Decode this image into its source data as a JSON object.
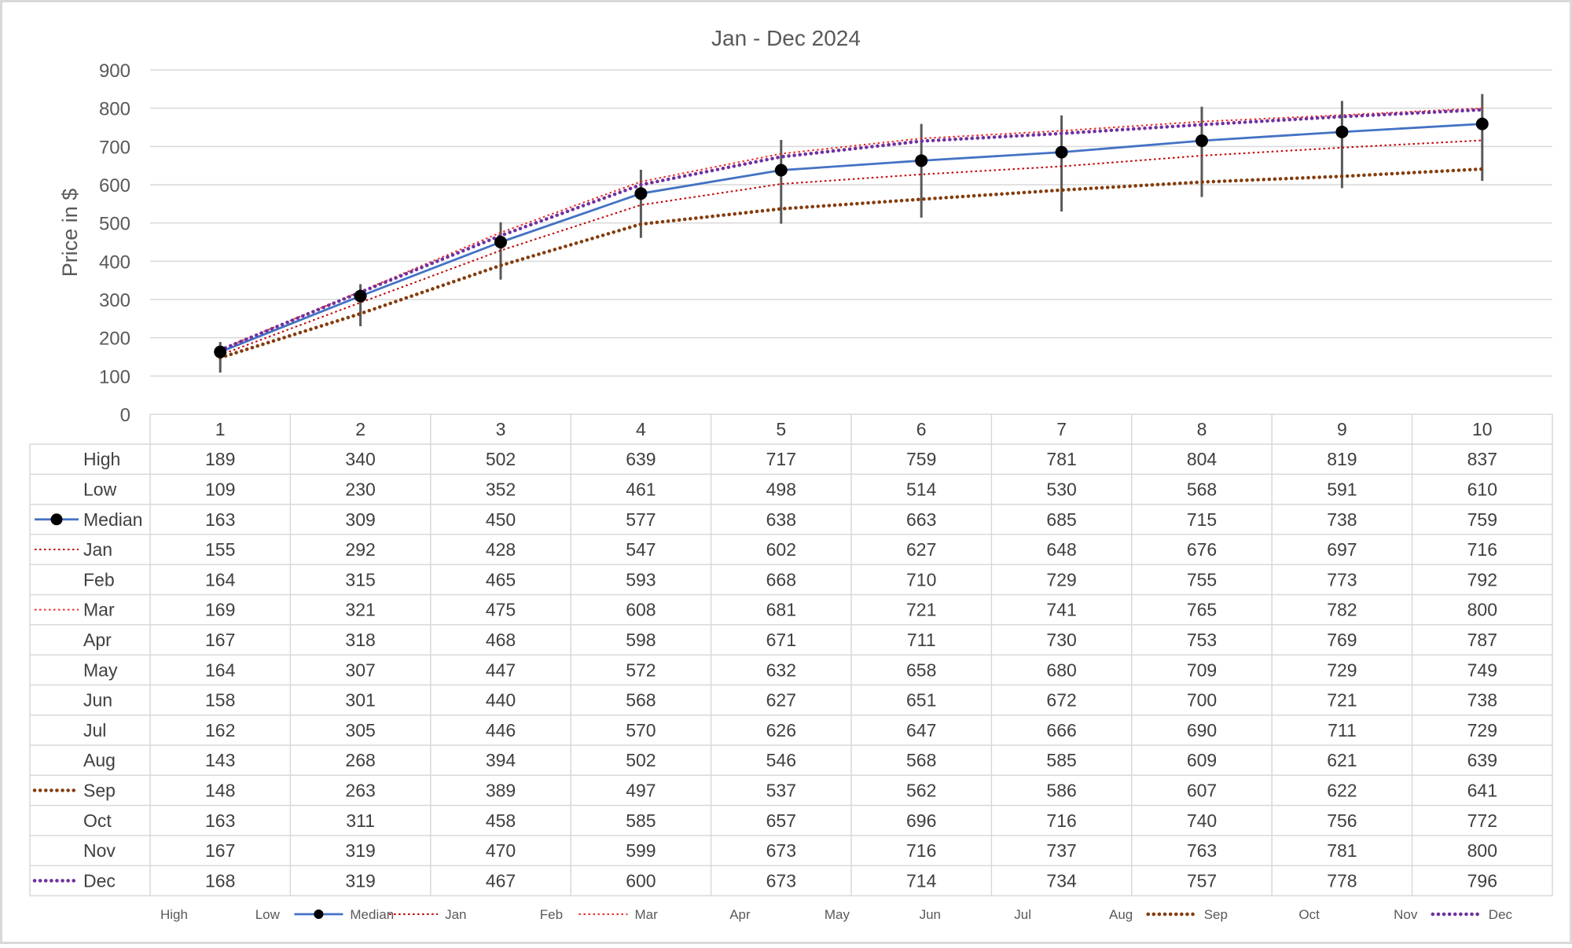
{
  "chart_data": {
    "type": "line",
    "title": "Jan - Dec 2024",
    "ylabel": "Price in $",
    "xlabel": "",
    "ylim": [
      0,
      900
    ],
    "yticks": [
      0,
      100,
      200,
      300,
      400,
      500,
      600,
      700,
      800,
      900
    ],
    "categories": [
      "1",
      "2",
      "3",
      "4",
      "5",
      "6",
      "7",
      "8",
      "9",
      "10"
    ],
    "grid": true,
    "legend_position": "bottom",
    "high_low_bars": true,
    "series": [
      {
        "name": "High",
        "values": [
          189,
          340,
          502,
          639,
          717,
          759,
          781,
          804,
          819,
          837
        ],
        "style": "none",
        "color": ""
      },
      {
        "name": "Low",
        "values": [
          109,
          230,
          352,
          461,
          498,
          514,
          530,
          568,
          591,
          610
        ],
        "style": "none",
        "color": ""
      },
      {
        "name": "Median",
        "values": [
          163,
          309,
          450,
          577,
          638,
          663,
          685,
          715,
          738,
          759
        ],
        "style": "solid-marker",
        "color": "#4472c4"
      },
      {
        "name": "Jan",
        "values": [
          155,
          292,
          428,
          547,
          602,
          627,
          648,
          676,
          697,
          716
        ],
        "style": "dotted-thin",
        "color": "#c00000"
      },
      {
        "name": "Feb",
        "values": [
          164,
          315,
          465,
          593,
          668,
          710,
          729,
          755,
          773,
          792
        ],
        "style": "none",
        "color": ""
      },
      {
        "name": "Mar",
        "values": [
          169,
          321,
          475,
          608,
          681,
          721,
          741,
          765,
          782,
          800
        ],
        "style": "dotted-thin",
        "color": "#e8302a"
      },
      {
        "name": "Apr",
        "values": [
          167,
          318,
          468,
          598,
          671,
          711,
          730,
          753,
          769,
          787
        ],
        "style": "none",
        "color": ""
      },
      {
        "name": "May",
        "values": [
          164,
          307,
          447,
          572,
          632,
          658,
          680,
          709,
          729,
          749
        ],
        "style": "none",
        "color": ""
      },
      {
        "name": "Jun",
        "values": [
          158,
          301,
          440,
          568,
          627,
          651,
          672,
          700,
          721,
          738
        ],
        "style": "none",
        "color": ""
      },
      {
        "name": "Jul",
        "values": [
          162,
          305,
          446,
          570,
          626,
          647,
          666,
          690,
          711,
          729
        ],
        "style": "none",
        "color": ""
      },
      {
        "name": "Aug",
        "values": [
          143,
          268,
          394,
          502,
          546,
          568,
          585,
          609,
          621,
          639
        ],
        "style": "none",
        "color": ""
      },
      {
        "name": "Sep",
        "values": [
          148,
          263,
          389,
          497,
          537,
          562,
          586,
          607,
          622,
          641
        ],
        "style": "dotted-thick",
        "color": "#843c0c"
      },
      {
        "name": "Oct",
        "values": [
          163,
          311,
          458,
          585,
          657,
          696,
          716,
          740,
          756,
          772
        ],
        "style": "none",
        "color": ""
      },
      {
        "name": "Nov",
        "values": [
          167,
          319,
          470,
          599,
          673,
          716,
          737,
          763,
          781,
          800
        ],
        "style": "none",
        "color": ""
      },
      {
        "name": "Dec",
        "values": [
          168,
          319,
          467,
          600,
          673,
          714,
          734,
          757,
          778,
          796
        ],
        "style": "dotted-thick",
        "color": "#7030a0"
      }
    ]
  }
}
